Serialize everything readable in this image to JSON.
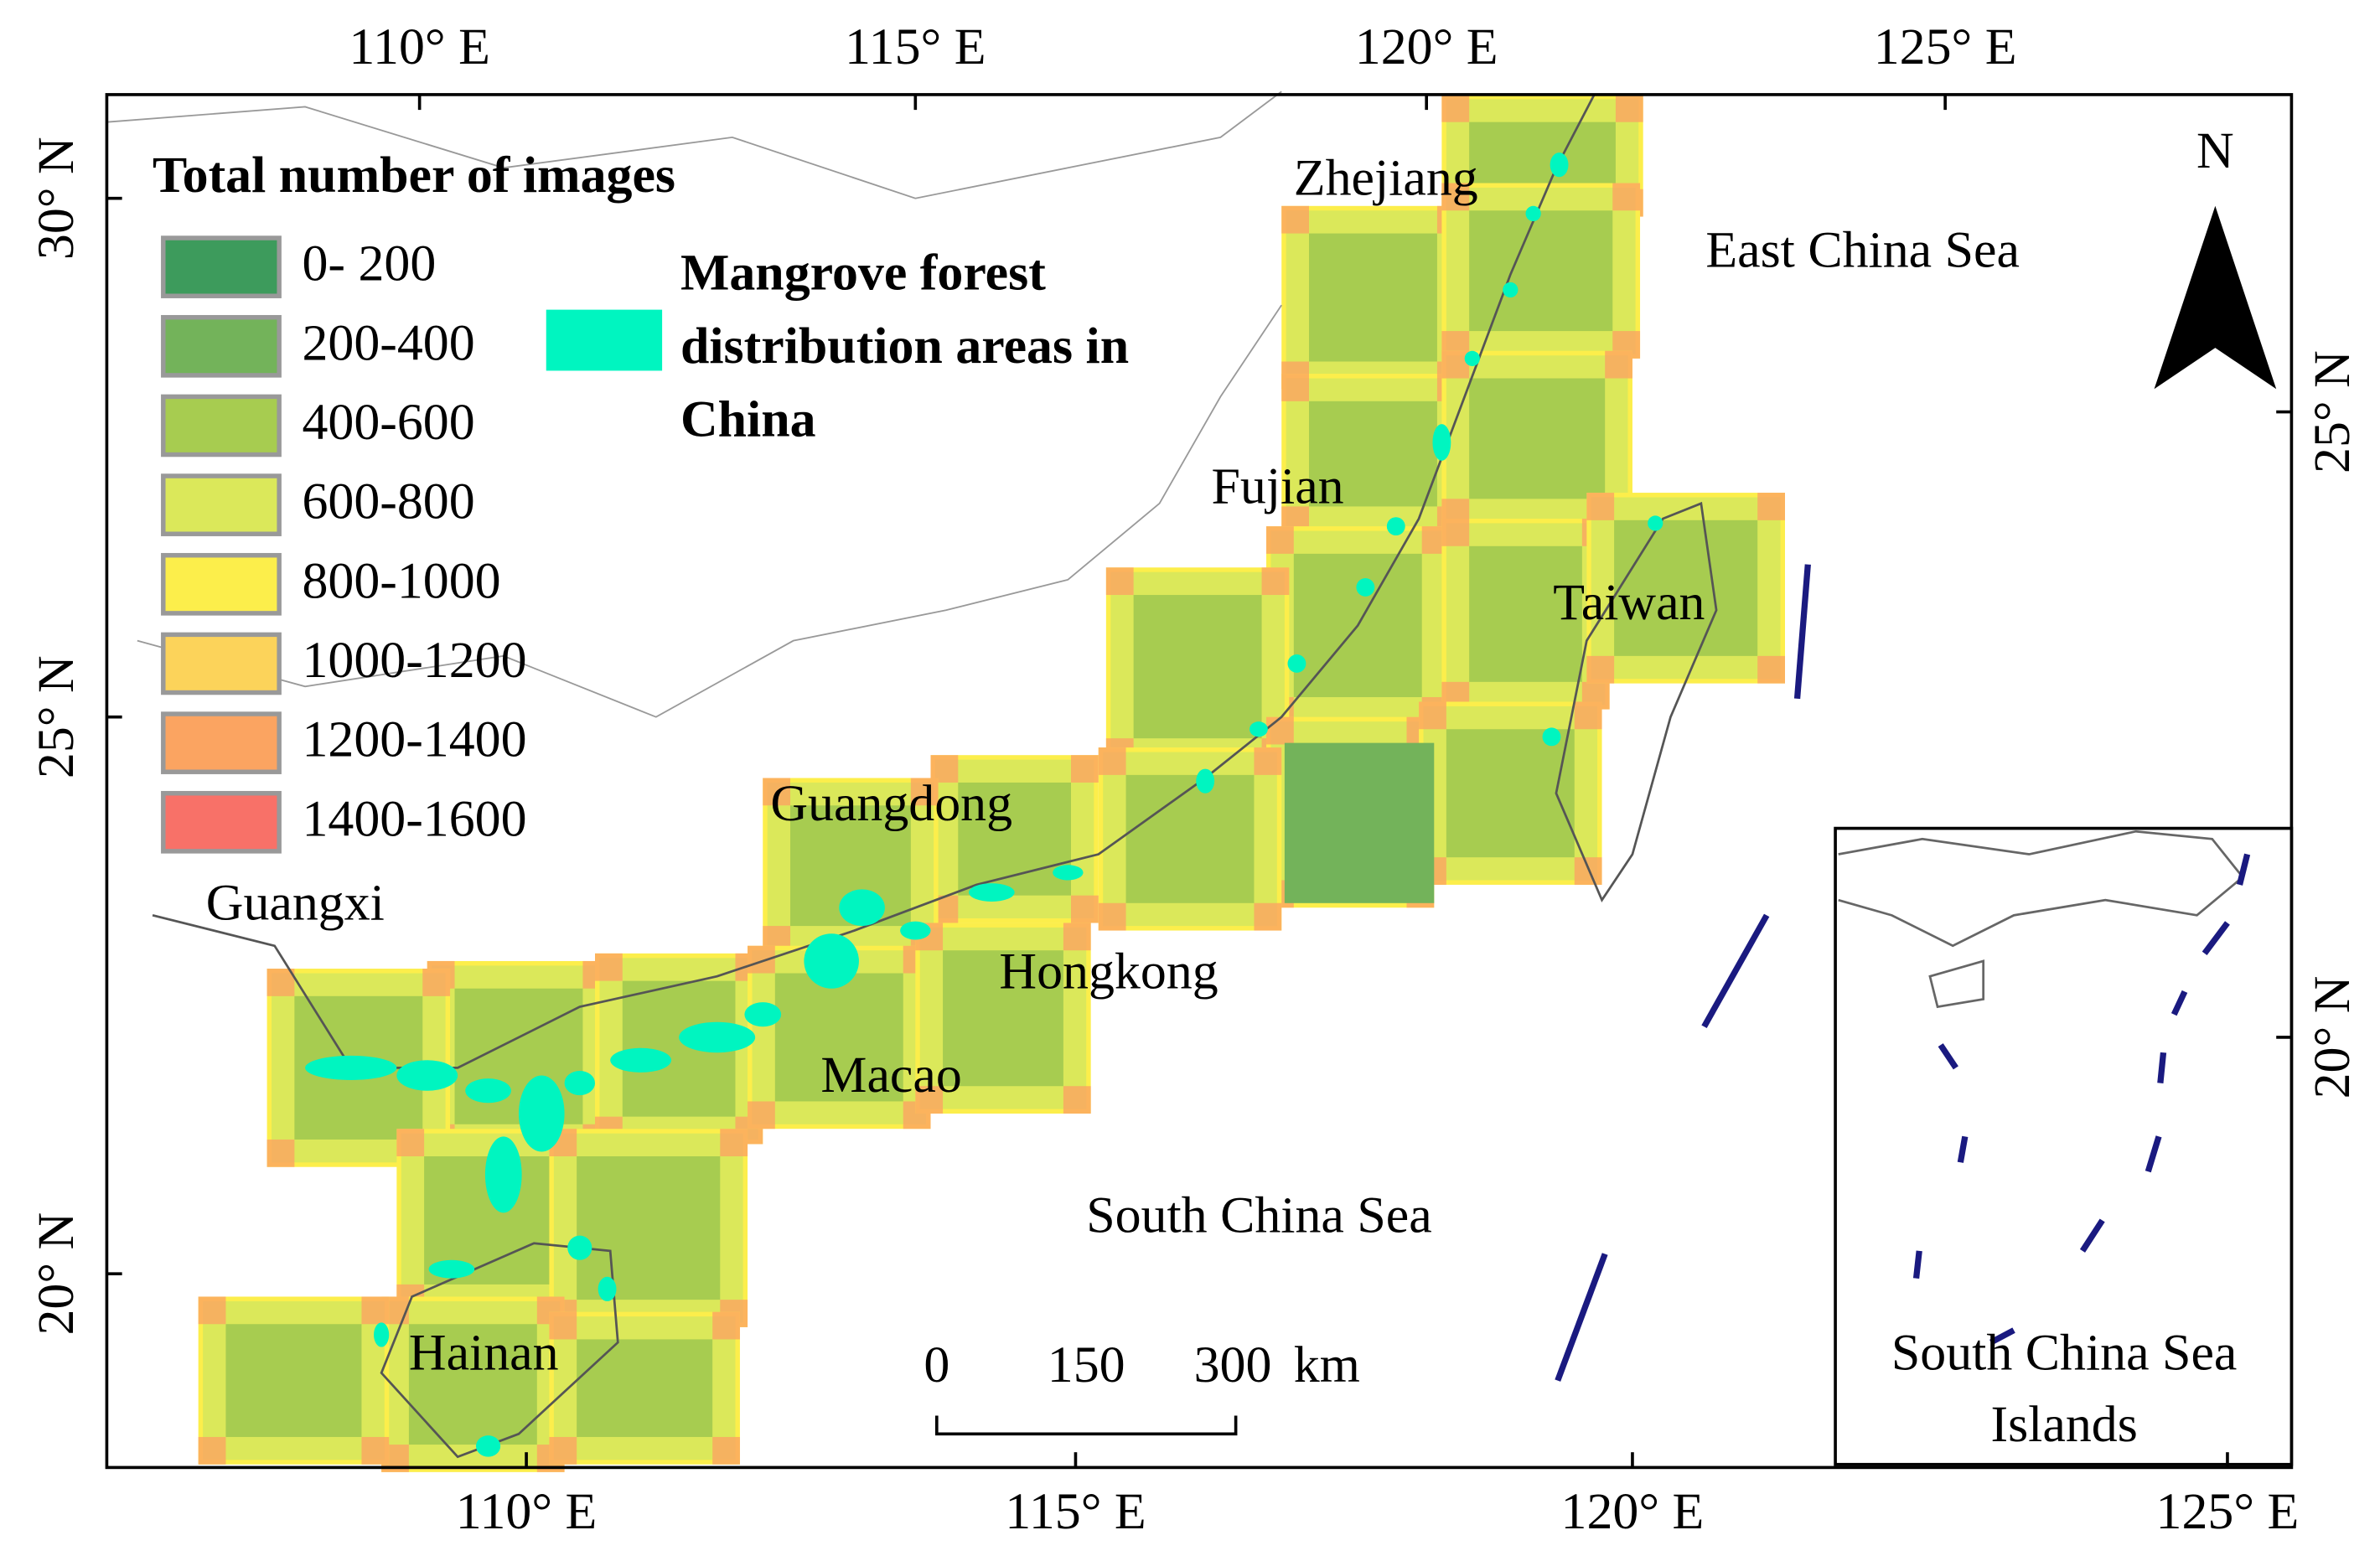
{
  "legend": {
    "title": "Total number of images",
    "items": [
      {
        "label": "0- 200",
        "color": "#3d9b5c"
      },
      {
        "label": "200-400",
        "color": "#73b35a"
      },
      {
        "label": "400-600",
        "color": "#a7cc50"
      },
      {
        "label": "600-800",
        "color": "#dbe85a"
      },
      {
        "label": "800-1000",
        "color": "#fcee4b"
      },
      {
        "label": "1000-1200",
        "color": "#fcd35a"
      },
      {
        "label": "1200-1400",
        "color": "#fba461"
      },
      {
        "label": "1400-1600",
        "color": "#f87168"
      }
    ]
  },
  "mangrove": {
    "lines": [
      "Mangrove forest",
      "distribution areas in",
      "China"
    ],
    "color": "#00f5c0"
  },
  "places": {
    "zhejiang": "Zhejiang",
    "fujian": "Fujian",
    "taiwan": "Taiwan",
    "guangdong": "Guangdong",
    "guangxi": "Guangxi",
    "hongkong": "Hongkong",
    "macao": "Macao",
    "hainan": "Hainan",
    "east_sea": "East China Sea",
    "south_sea": "South China Sea"
  },
  "axes": {
    "top": [
      "110° E",
      "115° E",
      "120° E",
      "125° E"
    ],
    "bottom": [
      "110° E",
      "115° E",
      "120° E",
      "125° E"
    ],
    "left": [
      "30° N",
      "25° N",
      "20° N"
    ],
    "right": [
      "25° N",
      "20° N"
    ]
  },
  "scale_bar": {
    "labels": [
      "0",
      "150",
      "300"
    ],
    "unit": "km"
  },
  "north": "N",
  "inset": {
    "lines": [
      "South China Sea",
      "Islands"
    ]
  }
}
